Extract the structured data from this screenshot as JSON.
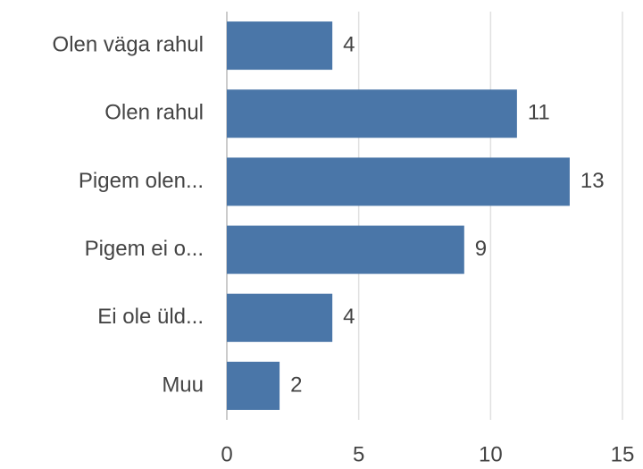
{
  "chart_data": {
    "type": "bar",
    "orientation": "horizontal",
    "categories": [
      "Olen väga rahul",
      "Olen rahul",
      "Pigem olen...",
      "Pigem ei o...",
      "Ei ole üld...",
      "Muu"
    ],
    "values": [
      4,
      11,
      13,
      9,
      4,
      2
    ],
    "color": "#4a76a8",
    "xlim": [
      0,
      15
    ],
    "xticks": [
      0,
      5,
      10,
      15
    ],
    "grid": true
  }
}
